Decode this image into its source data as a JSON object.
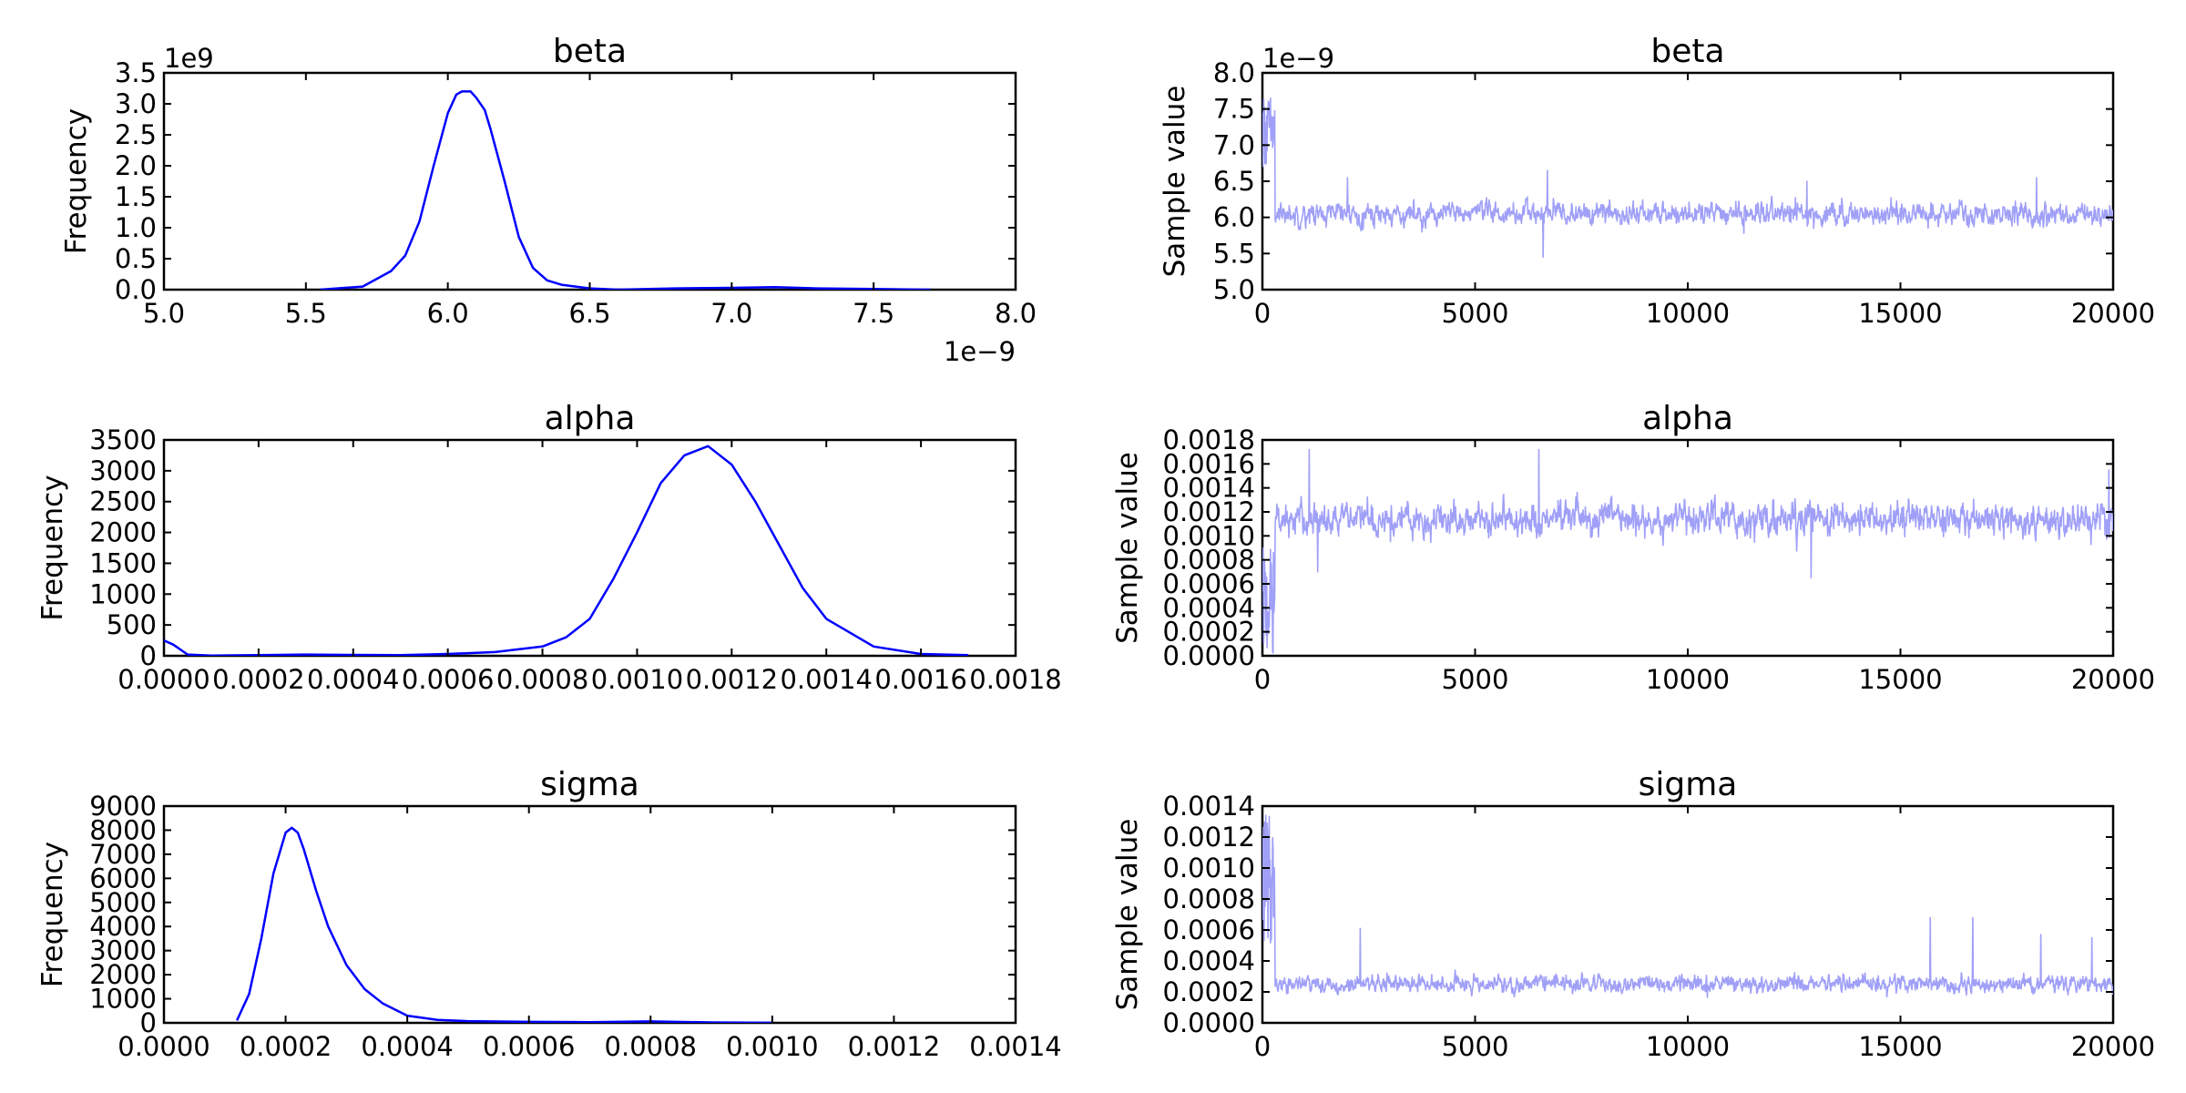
{
  "chart_data": [
    {
      "type": "line",
      "title": "beta",
      "xlabel": "",
      "ylabel": "Frequency",
      "xlim": [
        5.0,
        8.0
      ],
      "ylim": [
        0,
        3.5
      ],
      "x_offset_text": "1e−9",
      "y_offset_text": "1e9",
      "xticks": [
        "5.0",
        "5.5",
        "6.0",
        "6.5",
        "7.0",
        "7.5",
        "8.0"
      ],
      "yticks": [
        "0.0",
        "0.5",
        "1.0",
        "1.5",
        "2.0",
        "2.5",
        "3.0",
        "3.5"
      ],
      "grid": false,
      "color": "#0000ff",
      "series": [
        {
          "x": [
            5.55,
            5.7,
            5.8,
            5.85,
            5.9,
            5.95,
            6.0,
            6.03,
            6.05,
            6.08,
            6.1,
            6.13,
            6.15,
            6.2,
            6.25,
            6.3,
            6.35,
            6.4,
            6.45,
            6.5,
            6.6,
            6.8,
            7.0,
            7.15,
            7.3,
            7.5,
            7.7
          ],
          "y": [
            0.0,
            0.05,
            0.3,
            0.55,
            1.1,
            2.0,
            2.85,
            3.15,
            3.2,
            3.2,
            3.1,
            2.9,
            2.6,
            1.75,
            0.85,
            0.35,
            0.15,
            0.08,
            0.05,
            0.02,
            0.0,
            0.02,
            0.03,
            0.04,
            0.02,
            0.01,
            0.0
          ]
        }
      ]
    },
    {
      "type": "line",
      "title": "beta",
      "xlabel": "",
      "ylabel": "Sample value",
      "xlim": [
        0,
        20000
      ],
      "ylim": [
        5.0,
        8.0
      ],
      "y_offset_text": "1e−9",
      "xticks": [
        "0",
        "5000",
        "10000",
        "15000",
        "20000"
      ],
      "yticks": [
        "5.0",
        "5.5",
        "6.0",
        "6.5",
        "7.0",
        "7.5",
        "8.0"
      ],
      "grid": false,
      "color": "#a0a0f8",
      "trace": {
        "n": 20000,
        "burnin": 300,
        "start_range": [
          6.7,
          7.7
        ],
        "mean": 6.05,
        "sd": 0.14,
        "spikes": [
          [
            2000,
            6.55
          ],
          [
            6700,
            6.65
          ],
          [
            6600,
            5.45
          ],
          [
            12800,
            6.5
          ],
          [
            18200,
            6.55
          ]
        ]
      }
    },
    {
      "type": "line",
      "title": "alpha",
      "xlabel": "",
      "ylabel": "Frequency",
      "xlim": [
        0,
        0.0018
      ],
      "ylim": [
        0,
        3500
      ],
      "xticks": [
        "0.0000",
        "0.0002",
        "0.0004",
        "0.0006",
        "0.0008",
        "0.0010",
        "0.0012",
        "0.0014",
        "0.0016",
        "0.0018"
      ],
      "yticks": [
        "0",
        "500",
        "1000",
        "1500",
        "2000",
        "2500",
        "3000",
        "3500"
      ],
      "grid": false,
      "color": "#0000ff",
      "series": [
        {
          "x": [
            0.0,
            2e-05,
            5e-05,
            0.0001,
            0.0002,
            0.0003,
            0.0004,
            0.0005,
            0.0006,
            0.0007,
            0.0008,
            0.00085,
            0.0009,
            0.00095,
            0.001,
            0.00105,
            0.0011,
            0.00115,
            0.0012,
            0.00125,
            0.0013,
            0.00135,
            0.0014,
            0.0015,
            0.0016,
            0.0017
          ],
          "y": [
            250,
            180,
            20,
            5,
            10,
            20,
            15,
            10,
            30,
            60,
            150,
            300,
            600,
            1250,
            2000,
            2800,
            3250,
            3400,
            3100,
            2500,
            1800,
            1100,
            600,
            150,
            30,
            10
          ]
        }
      ]
    },
    {
      "type": "line",
      "title": "alpha",
      "xlabel": "",
      "ylabel": "Sample value",
      "xlim": [
        0,
        20000
      ],
      "ylim": [
        0,
        0.0018
      ],
      "xticks": [
        "0",
        "5000",
        "10000",
        "15000",
        "20000"
      ],
      "yticks": [
        "0.0000",
        "0.0002",
        "0.0004",
        "0.0006",
        "0.0008",
        "0.0010",
        "0.0012",
        "0.0014",
        "0.0016",
        "0.0018"
      ],
      "grid": false,
      "color": "#a0a0f8",
      "trace": {
        "n": 20000,
        "burnin": 300,
        "start_range": [
          0.0,
          0.0009
        ],
        "mean": 0.00114,
        "sd": 0.00013,
        "spikes": [
          [
            1100,
            0.00172
          ],
          [
            6500,
            0.00172
          ],
          [
            1300,
            0.0007
          ],
          [
            12900,
            0.00065
          ],
          [
            19900,
            0.00155
          ]
        ]
      }
    },
    {
      "type": "line",
      "title": "sigma",
      "xlabel": "",
      "ylabel": "Frequency",
      "xlim": [
        0,
        0.0014
      ],
      "ylim": [
        0,
        9000
      ],
      "xticks": [
        "0.0000",
        "0.0002",
        "0.0004",
        "0.0006",
        "0.0008",
        "0.0010",
        "0.0012",
        "0.0014"
      ],
      "yticks": [
        "0",
        "1000",
        "2000",
        "3000",
        "4000",
        "5000",
        "6000",
        "7000",
        "8000",
        "9000"
      ],
      "grid": false,
      "color": "#0000ff",
      "series": [
        {
          "x": [
            0.00012,
            0.00014,
            0.00016,
            0.00018,
            0.0002,
            0.00021,
            0.00022,
            0.00023,
            0.00025,
            0.00027,
            0.0003,
            0.00033,
            0.00036,
            0.0004,
            0.00045,
            0.0005,
            0.0006,
            0.0007,
            0.0008,
            0.0009,
            0.001
          ],
          "y": [
            100,
            1200,
            3500,
            6200,
            7900,
            8100,
            7900,
            7200,
            5500,
            4000,
            2400,
            1400,
            800,
            300,
            120,
            70,
            40,
            30,
            60,
            20,
            5
          ]
        }
      ]
    },
    {
      "type": "line",
      "title": "sigma",
      "xlabel": "",
      "ylabel": "Sample value",
      "xlim": [
        0,
        20000
      ],
      "ylim": [
        0,
        0.0014
      ],
      "xticks": [
        "0",
        "5000",
        "10000",
        "15000",
        "20000"
      ],
      "yticks": [
        "0.0000",
        "0.0002",
        "0.0004",
        "0.0006",
        "0.0008",
        "0.0010",
        "0.0012",
        "0.0014"
      ],
      "grid": false,
      "color": "#a0a0f8",
      "trace": {
        "n": 20000,
        "burnin": 300,
        "start_range": [
          0.0005,
          0.00135
        ],
        "mean": 0.00025,
        "sd": 5e-05,
        "spikes": [
          [
            2300,
            0.00061
          ],
          [
            15700,
            0.00068
          ],
          [
            16700,
            0.00068
          ],
          [
            18300,
            0.00057
          ],
          [
            19500,
            0.00055
          ]
        ]
      }
    }
  ]
}
